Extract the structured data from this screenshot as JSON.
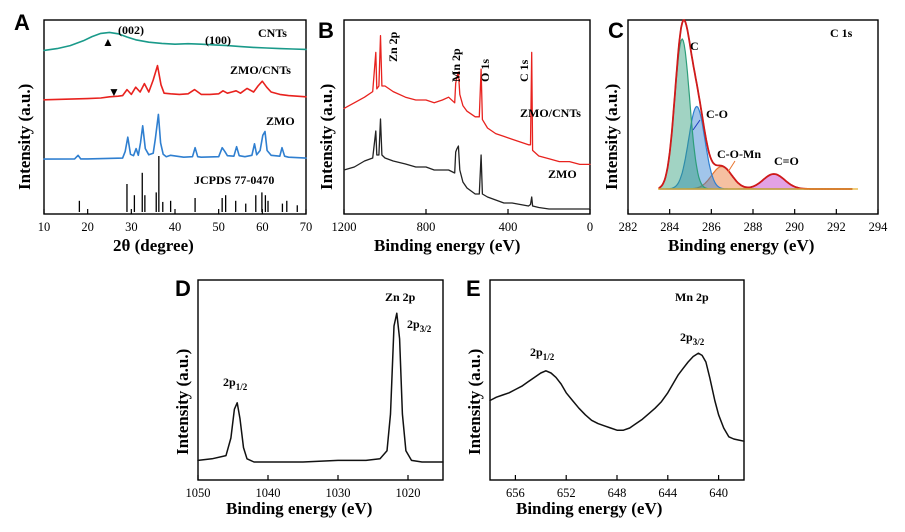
{
  "chart_data": [
    {
      "panel": "A",
      "type": "line",
      "xlabel": "2θ (degree)",
      "ylabel": "Intensity (a.u.)",
      "xlim": [
        10,
        70
      ],
      "xticks": [
        10,
        20,
        30,
        40,
        50,
        60,
        70
      ],
      "series": [
        {
          "name": "CNTs",
          "color": "#1a9a8a",
          "x": [
            10,
            13,
            16,
            19,
            21,
            23,
            25,
            27,
            29,
            31,
            34,
            37,
            40,
            43,
            46,
            49,
            52,
            55,
            58,
            61,
            64,
            67,
            70
          ],
          "y": [
            0.3,
            0.45,
            0.7,
            1.1,
            1.45,
            1.72,
            1.8,
            1.68,
            1.42,
            1.18,
            0.98,
            0.88,
            0.82,
            0.86,
            0.82,
            0.76,
            0.7,
            0.62,
            0.55,
            0.5,
            0.45,
            0.42,
            0.38
          ]
        },
        {
          "name": "ZMO/CNTs",
          "color": "#e8221e",
          "x": [
            10,
            15,
            20,
            23,
            25,
            27,
            28,
            29,
            30,
            31,
            32,
            33,
            34,
            35,
            36,
            36.8,
            37.5,
            39,
            41,
            43,
            44.5,
            46,
            48,
            50,
            51,
            52,
            53,
            54,
            55,
            56.5,
            58,
            59,
            60,
            61,
            62,
            64,
            66,
            68,
            70
          ],
          "y": [
            0.35,
            0.4,
            0.45,
            0.5,
            0.6,
            0.65,
            0.7,
            1.2,
            0.8,
            1.4,
            1.0,
            1.7,
            1.0,
            2.0,
            3.2,
            1.6,
            0.9,
            0.85,
            0.8,
            0.85,
            1.2,
            0.8,
            0.8,
            0.85,
            1.1,
            0.9,
            1.0,
            1.1,
            0.9,
            1.3,
            1.0,
            1.5,
            1.9,
            1.4,
            1.0,
            0.8,
            0.7,
            0.65,
            0.6
          ]
        },
        {
          "name": "ZMO",
          "color": "#2f7fd0",
          "x": [
            10,
            17,
            17.8,
            18.4,
            20,
            28,
            28.6,
            29.2,
            29.8,
            30.5,
            31.1,
            31.6,
            32.1,
            32.6,
            33.2,
            34,
            35,
            35.5,
            36.2,
            36.7,
            37.3,
            38,
            39,
            42,
            44,
            44.6,
            45.2,
            46,
            50,
            50.8,
            51.4,
            52,
            53.5,
            54.1,
            54.7,
            56,
            57.6,
            58.2,
            58.7,
            59.5,
            60.1,
            60.6,
            61.1,
            62,
            64,
            64.5,
            65.1,
            66,
            70
          ],
          "y": [
            0.1,
            0.12,
            0.5,
            0.12,
            0.12,
            0.2,
            0.9,
            2.4,
            0.6,
            0.45,
            1.2,
            0.5,
            1.8,
            3.6,
            1.2,
            0.55,
            0.7,
            2.2,
            4.8,
            1.8,
            0.6,
            0.35,
            0.5,
            0.3,
            0.35,
            1.3,
            0.35,
            0.3,
            0.35,
            1.3,
            0.9,
            0.45,
            0.4,
            1.4,
            0.45,
            0.35,
            0.5,
            1.7,
            0.55,
            1.0,
            2.6,
            3.0,
            1.0,
            0.5,
            0.4,
            1.3,
            0.4,
            0.3,
            0.2
          ]
        },
        {
          "name": "JCPDS 77-0470",
          "type": "stick",
          "color": "#000000",
          "x": [
            18.1,
            29.0,
            30.7,
            32.5,
            33.1,
            35.7,
            36.3,
            37.2,
            39.0,
            44.6,
            50.8,
            51.6,
            53.9,
            56.2,
            58.5,
            59.9,
            60.7,
            61.3,
            64.6,
            65.6,
            68.0
          ],
          "y": [
            0.2,
            0.5,
            0.3,
            0.7,
            0.3,
            0.35,
            1.0,
            0.18,
            0.2,
            0.25,
            0.25,
            0.3,
            0.2,
            0.15,
            0.3,
            0.35,
            0.3,
            0.2,
            0.15,
            0.2,
            0.12
          ]
        }
      ],
      "annotations": [
        "(002)",
        "(100)",
        "▲",
        "▼"
      ]
    },
    {
      "panel": "B",
      "type": "line",
      "xlabel": "Binding energy (eV)",
      "ylabel": "Intensity (a.u.)",
      "xlim": [
        1200,
        0
      ],
      "xticks": [
        1200,
        800,
        400,
        0
      ],
      "peak_labels": [
        "Zn 2p",
        "Mn 2p",
        "O 1s",
        "C 1s"
      ],
      "series": [
        {
          "name": "ZMO/CNTs",
          "color": "#e8221e",
          "x": [
            1200,
            1150,
            1100,
            1060,
            1045,
            1040,
            1030,
            1022,
            1015,
            1000,
            960,
            900,
            850,
            800,
            760,
            720,
            690,
            660,
            655,
            650,
            642,
            635,
            620,
            600,
            560,
            540,
            531,
            525,
            500,
            460,
            420,
            380,
            340,
            300,
            290,
            284.5,
            280,
            250,
            200,
            150,
            100,
            50,
            0
          ],
          "y": [
            3.2,
            3.4,
            3.6,
            3.8,
            5.2,
            3.9,
            4.0,
            5.8,
            4.0,
            4.0,
            3.8,
            3.6,
            3.5,
            3.5,
            3.4,
            3.5,
            3.6,
            3.4,
            4.1,
            4.3,
            4.5,
            3.7,
            3.3,
            3.1,
            2.9,
            2.9,
            4.6,
            2.8,
            2.5,
            2.3,
            2.2,
            2.1,
            2.0,
            1.9,
            1.9,
            5.2,
            1.7,
            1.5,
            1.4,
            1.3,
            1.3,
            1.2,
            1.2
          ]
        },
        {
          "name": "ZMO",
          "color": "#222222",
          "x": [
            1200,
            1150,
            1100,
            1060,
            1045,
            1040,
            1030,
            1022,
            1015,
            1000,
            960,
            900,
            850,
            800,
            760,
            720,
            690,
            660,
            655,
            650,
            642,
            635,
            620,
            600,
            560,
            540,
            531,
            525,
            500,
            460,
            420,
            380,
            340,
            300,
            290,
            284.5,
            280,
            250,
            200,
            150,
            100,
            50,
            0
          ],
          "y": [
            1.6,
            1.7,
            1.9,
            2.0,
            2.9,
            2.1,
            2.1,
            3.3,
            2.1,
            2.0,
            1.9,
            1.8,
            1.7,
            1.7,
            1.6,
            1.6,
            1.6,
            1.5,
            2.2,
            2.3,
            2.4,
            1.6,
            1.2,
            1.0,
            0.8,
            0.8,
            2.1,
            0.8,
            0.7,
            0.6,
            0.5,
            0.5,
            0.45,
            0.4,
            0.45,
            0.7,
            0.4,
            0.35,
            0.3,
            0.3,
            0.3,
            0.3,
            0.3
          ]
        }
      ]
    },
    {
      "panel": "C",
      "type": "area",
      "title": "C 1s",
      "xlabel": "Binding energy (eV)",
      "ylabel": "Intensity (a.u.)",
      "xlim": [
        282,
        294
      ],
      "xticks": [
        282,
        284,
        286,
        288,
        290,
        292,
        294
      ],
      "components": [
        {
          "name": "C",
          "center": 284.6,
          "height": 1.0,
          "width": 0.55,
          "color": "#2e9e7a",
          "label_color": "#1a9a8a"
        },
        {
          "name": "C-O",
          "center": 285.3,
          "height": 0.55,
          "width": 0.6,
          "color": "#2f7fd0",
          "label_color": "#1f3fbf"
        },
        {
          "name": "C-O-Mn",
          "center": 286.5,
          "height": 0.15,
          "width": 0.75,
          "color": "#e8742e",
          "label_color": "#e8742e"
        },
        {
          "name": "C=O",
          "center": 289.0,
          "height": 0.1,
          "width": 0.8,
          "color": "#c030c8",
          "label_color": "#b020c0"
        }
      ],
      "envelope_color": "#d01a1a",
      "baseline": 0.02
    },
    {
      "panel": "D",
      "type": "line",
      "title": "Zn 2p",
      "xlabel": "Binding energy (eV)",
      "ylabel": "Intensity (a.u.)",
      "xlim": [
        1050,
        1015
      ],
      "xticks": [
        1050,
        1040,
        1030,
        1020
      ],
      "peak_labels": [
        "2p1/2",
        "2p3/2"
      ],
      "series": [
        {
          "name": "Zn 2p",
          "color": "#111111",
          "x": [
            1050,
            1048,
            1046,
            1045.3,
            1044.8,
            1044.4,
            1044.0,
            1043.5,
            1043.0,
            1042,
            1040,
            1035,
            1030,
            1026,
            1024,
            1023,
            1022.5,
            1022.0,
            1021.6,
            1021.2,
            1020.8,
            1020.3,
            1019.5,
            1018,
            1016.5,
            1015
          ],
          "y": [
            0.06,
            0.07,
            0.09,
            0.2,
            0.38,
            0.42,
            0.32,
            0.14,
            0.07,
            0.05,
            0.05,
            0.05,
            0.06,
            0.06,
            0.07,
            0.12,
            0.35,
            0.9,
            0.98,
            0.82,
            0.35,
            0.12,
            0.06,
            0.05,
            0.05,
            0.05
          ]
        }
      ]
    },
    {
      "panel": "E",
      "type": "line",
      "title": "Mn 2p",
      "xlabel": "Binding energy (eV)",
      "ylabel": "Intensity (a.u.)",
      "xlim": [
        658,
        638
      ],
      "xticks": [
        656,
        652,
        648,
        644,
        640
      ],
      "peak_labels": [
        "2p1/2",
        "2p3/2"
      ],
      "series": [
        {
          "name": "Mn 2p",
          "color": "#111111",
          "x": [
            658,
            657.5,
            657,
            656.5,
            656,
            655.5,
            655,
            654.5,
            654,
            653.6,
            653.2,
            652.8,
            652.4,
            652,
            651.5,
            651,
            650.5,
            650,
            649.5,
            649,
            648.5,
            648,
            647.5,
            647,
            646.5,
            646,
            645.5,
            645,
            644.5,
            644,
            643.6,
            643.2,
            642.8,
            642.4,
            642,
            641.6,
            641.3,
            641,
            640.7,
            640.3,
            640,
            639.6,
            639.2,
            638.8,
            638.4,
            638
          ],
          "y": [
            0.45,
            0.48,
            0.5,
            0.52,
            0.55,
            0.58,
            0.62,
            0.66,
            0.7,
            0.72,
            0.7,
            0.66,
            0.6,
            0.52,
            0.45,
            0.38,
            0.32,
            0.27,
            0.24,
            0.22,
            0.2,
            0.18,
            0.18,
            0.2,
            0.24,
            0.28,
            0.33,
            0.38,
            0.44,
            0.52,
            0.6,
            0.68,
            0.74,
            0.8,
            0.85,
            0.88,
            0.86,
            0.8,
            0.66,
            0.45,
            0.32,
            0.2,
            0.12,
            0.1,
            0.09,
            0.08
          ]
        }
      ]
    }
  ]
}
